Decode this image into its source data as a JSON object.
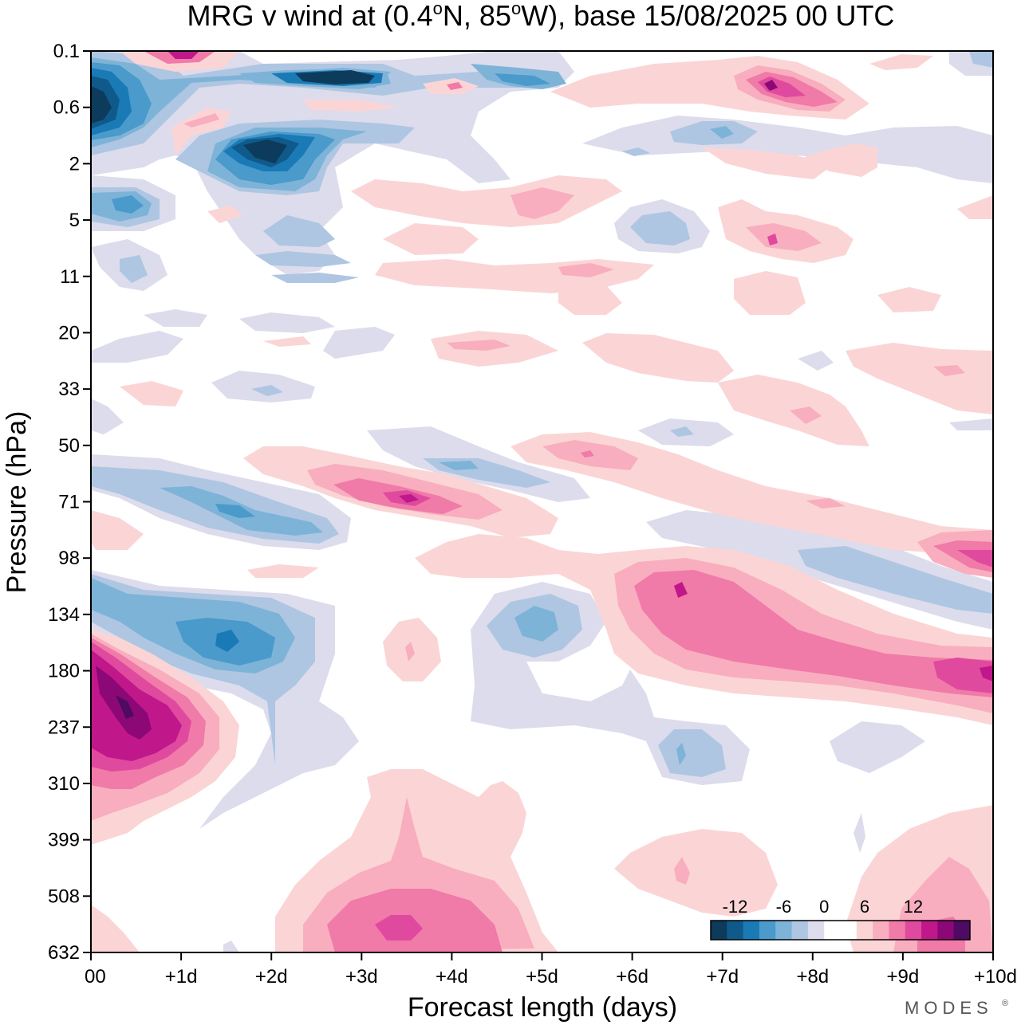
{
  "chart_data": {
    "type": "heatmap",
    "title_main": "MRG v wind at (0.4",
    "title_deg1": "o",
    "title_mid": "N, 85",
    "title_deg2": "o",
    "title_end": "W),  base 15/08/2025  00 UTC",
    "xlabel": "Forecast length (days)",
    "ylabel": "Pressure (hPa)",
    "x_ticks": [
      "00",
      "+1d",
      "+2d",
      "+3d",
      "+4d",
      "+5d",
      "+6d",
      "+7d",
      "+8d",
      "+9d",
      "+10d"
    ],
    "y_ticks": [
      "0.1",
      "0.6",
      "2",
      "5",
      "11",
      "20",
      "33",
      "50",
      "71",
      "98",
      "134",
      "180",
      "237",
      "310",
      "399",
      "508",
      "632"
    ],
    "xlim": [
      0,
      10
    ],
    "colorbar": {
      "labels": [
        "-12",
        "-6",
        "0",
        "6",
        "12"
      ],
      "label_positions": [
        1.5,
        4.5,
        7,
        9.5,
        12.5
      ],
      "colors": [
        "#0d3b5c",
        "#0f5a8a",
        "#1a7ab5",
        "#4a9acb",
        "#7eb3d8",
        "#aec6e2",
        "#dcdcec",
        "#ffffff",
        "#ffffff",
        "#fbd5d5",
        "#f8aebe",
        "#f07aa8",
        "#df4a9e",
        "#c0178b",
        "#8b0876",
        "#4f0a63"
      ]
    },
    "fields": [
      {
        "note": "upper stratosphere negative",
        "x": 0.15,
        "y": 0.9,
        "v": -13
      },
      {
        "note": "upper negative core 2",
        "x": 2.0,
        "y": 1.8,
        "v": -13
      },
      {
        "note": "upper negative band",
        "x": 3.0,
        "y": 0.25,
        "v": -12
      },
      {
        "note": "top positive",
        "x": 1.0,
        "y": 0.1,
        "v": 10
      },
      {
        "note": "upper positive",
        "x": 7.5,
        "y": 0.45,
        "v": 11
      },
      {
        "note": "mid negative",
        "x": 0.6,
        "y": 4.0,
        "v": -6
      },
      {
        "note": "mid negative",
        "x": 6.3,
        "y": 5.0,
        "v": -6
      },
      {
        "note": "tilted negative band",
        "x": 1.5,
        "y": 70,
        "v": -7
      },
      {
        "note": "tilted positive band",
        "x": 3.6,
        "y": 68,
        "v": 10
      },
      {
        "note": "lower negative",
        "x": 1.6,
        "y": 140,
        "v": -10
      },
      {
        "note": "lower negative",
        "x": 5.0,
        "y": 135,
        "v": -7
      },
      {
        "note": "lower negative",
        "x": 6.5,
        "y": 250,
        "v": -7
      },
      {
        "note": "strong positive",
        "x": 0.5,
        "y": 230,
        "v": 15
      },
      {
        "note": "long positive band",
        "x": 6.5,
        "y": 120,
        "v": 10
      },
      {
        "note": "positive band right",
        "x": 9.8,
        "y": 180,
        "v": 11
      },
      {
        "note": "positive right 98",
        "x": 9.8,
        "y": 98,
        "v": 10
      },
      {
        "note": "low positive",
        "x": 3.5,
        "y": 570,
        "v": 9
      },
      {
        "note": "low positive",
        "x": 6.5,
        "y": 480,
        "v": 5
      },
      {
        "note": "low positive",
        "x": 9.7,
        "y": 560,
        "v": 7
      }
    ]
  },
  "brand": "MODES",
  "brand_mark": "®"
}
